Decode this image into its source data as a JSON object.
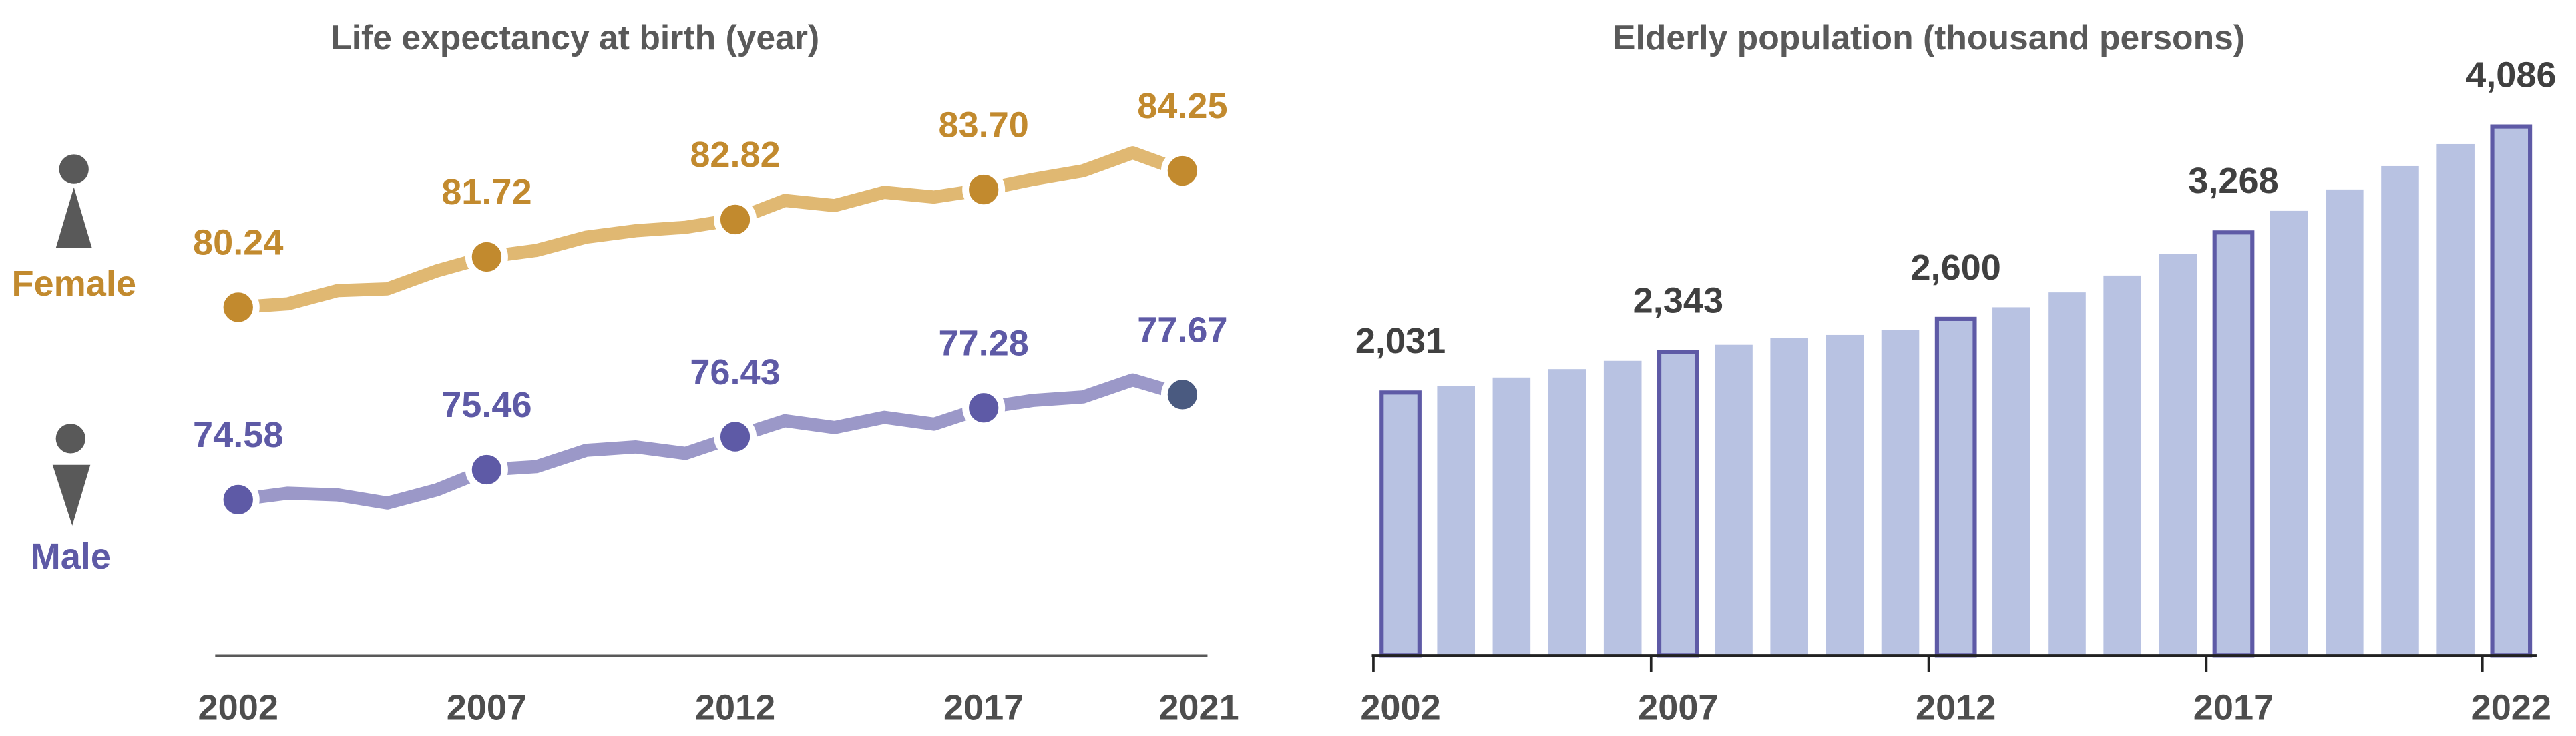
{
  "chart_data": [
    {
      "type": "line",
      "title": "Life expectancy at birth (year)",
      "x": [
        2002,
        2003,
        2004,
        2005,
        2006,
        2007,
        2008,
        2009,
        2010,
        2011,
        2012,
        2013,
        2014,
        2015,
        2016,
        2017,
        2018,
        2019,
        2020,
        2021
      ],
      "x_tick_labels": [
        "2002",
        "2007",
        "2012",
        "2017",
        "2021"
      ],
      "series": [
        {
          "name": "Female",
          "color": "#C28A2E",
          "line_color": "#E0B872",
          "values": [
            80.24,
            80.34,
            80.73,
            80.78,
            81.31,
            81.72,
            81.91,
            82.3,
            82.49,
            82.59,
            82.82,
            83.38,
            83.23,
            83.62,
            83.48,
            83.7,
            84.0,
            84.25,
            84.78,
            84.25
          ],
          "labels": {
            "2002": "80.24",
            "2007": "81.72",
            "2012": "82.82",
            "2017": "83.70",
            "2021": "84.25"
          }
        },
        {
          "name": "Male",
          "color": "#5E5AA6",
          "line_color": "#9B98C8",
          "values": [
            74.58,
            74.77,
            74.72,
            74.48,
            74.87,
            75.46,
            75.55,
            76.03,
            76.13,
            75.94,
            76.43,
            76.9,
            76.7,
            77.0,
            76.8,
            77.28,
            77.5,
            77.6,
            78.1,
            77.67
          ],
          "labels": {
            "2002": "74.58",
            "2007": "75.46",
            "2012": "76.43",
            "2017": "77.28",
            "2021": "77.67"
          }
        }
      ],
      "icons": {
        "female": "female-figure-icon",
        "male": "male-figure-icon"
      },
      "grid": false
    },
    {
      "type": "bar",
      "title": "Elderly population (thousand persons)",
      "categories": [
        2002,
        2003,
        2004,
        2005,
        2006,
        2007,
        2008,
        2009,
        2010,
        2011,
        2012,
        2013,
        2014,
        2015,
        2016,
        2017,
        2018,
        2019,
        2020,
        2021,
        2022
      ],
      "values": [
        2031,
        2083,
        2147,
        2212,
        2276,
        2343,
        2400,
        2450,
        2476,
        2515,
        2600,
        2690,
        2805,
        2935,
        3100,
        3268,
        3435,
        3600,
        3780,
        3950,
        4086
      ],
      "x_tick_labels": [
        "2002",
        "2007",
        "2012",
        "2017",
        "2022"
      ],
      "data_labels": {
        "2002": "2,031",
        "2007": "2,343",
        "2012": "2,600",
        "2017": "3,268",
        "2022": "4,086"
      },
      "highlighted": [
        2002,
        2007,
        2012,
        2017,
        2022
      ],
      "bar_color": "#B8C2E2",
      "highlight_color": "#5E5AA6",
      "ylim": [
        0,
        4086
      ],
      "grid": false
    }
  ]
}
